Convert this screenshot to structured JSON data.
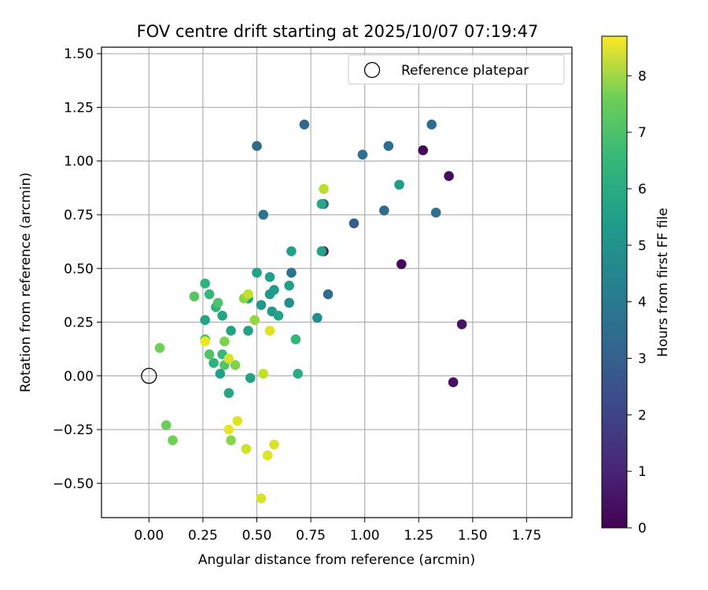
{
  "chart_data": {
    "type": "scatter",
    "title": "FOV centre drift starting at 2025/10/07 07:19:47",
    "xlabel": "Angular distance from reference (arcmin)",
    "ylabel": "Rotation from reference (arcmin)",
    "xlim": [
      -0.22,
      1.96
    ],
    "ylim": [
      -0.66,
      1.53
    ],
    "xticks": [
      0.0,
      0.25,
      0.5,
      0.75,
      1.0,
      1.25,
      1.5,
      1.75
    ],
    "xtick_labels": [
      "0.00",
      "0.25",
      "0.50",
      "0.75",
      "1.00",
      "1.25",
      "1.50",
      "1.75"
    ],
    "yticks": [
      -0.5,
      -0.25,
      0.0,
      0.25,
      0.5,
      0.75,
      1.0,
      1.25,
      1.5
    ],
    "ytick_labels": [
      "−0.50",
      "−0.25",
      "0.00",
      "0.25",
      "0.50",
      "0.75",
      "1.00",
      "1.25",
      "1.50"
    ],
    "grid": true,
    "legend": {
      "position": "top-right",
      "label": "Reference platepar"
    },
    "reference_point": {
      "x": 0.0,
      "y": 0.0
    },
    "colorbar": {
      "label": "Hours from first FF file",
      "range": [
        0,
        8.7
      ],
      "ticks": [
        0,
        1,
        2,
        3,
        4,
        5,
        6,
        7,
        8
      ],
      "tick_labels": [
        "0",
        "1",
        "2",
        "3",
        "4",
        "5",
        "6",
        "7",
        "8"
      ],
      "colormap": "viridis"
    },
    "points": [
      {
        "x": 1.27,
        "y": 1.05,
        "h": 0.2
      },
      {
        "x": 1.39,
        "y": 0.93,
        "h": 0.3
      },
      {
        "x": 1.17,
        "y": 0.52,
        "h": 0.2
      },
      {
        "x": 1.45,
        "y": 0.24,
        "h": 0.4
      },
      {
        "x": 1.41,
        "y": -0.03,
        "h": 0.4
      },
      {
        "x": 0.81,
        "y": 0.58,
        "h": 0.6
      },
      {
        "x": 0.81,
        "y": 0.8,
        "h": 2.5
      },
      {
        "x": 0.72,
        "y": 1.17,
        "h": 2.9
      },
      {
        "x": 0.5,
        "y": 1.07,
        "h": 3.0
      },
      {
        "x": 0.99,
        "y": 1.03,
        "h": 3.2
      },
      {
        "x": 1.11,
        "y": 1.07,
        "h": 3.1
      },
      {
        "x": 1.31,
        "y": 1.17,
        "h": 3.1
      },
      {
        "x": 0.95,
        "y": 0.71,
        "h": 2.6
      },
      {
        "x": 1.09,
        "y": 0.77,
        "h": 3.0
      },
      {
        "x": 1.33,
        "y": 0.76,
        "h": 3.2
      },
      {
        "x": 0.53,
        "y": 0.75,
        "h": 3.3
      },
      {
        "x": 0.66,
        "y": 0.48,
        "h": 3.3
      },
      {
        "x": 0.83,
        "y": 0.38,
        "h": 3.1
      },
      {
        "x": 1.16,
        "y": 0.89,
        "h": 4.8
      },
      {
        "x": 0.8,
        "y": 0.58,
        "h": 5.1
      },
      {
        "x": 0.8,
        "y": 0.8,
        "h": 5.2
      },
      {
        "x": 0.66,
        "y": 0.58,
        "h": 4.9
      },
      {
        "x": 0.65,
        "y": 0.34,
        "h": 4.3
      },
      {
        "x": 0.65,
        "y": 0.42,
        "h": 4.9
      },
      {
        "x": 0.56,
        "y": 0.46,
        "h": 4.9
      },
      {
        "x": 0.5,
        "y": 0.48,
        "h": 5.0
      },
      {
        "x": 0.56,
        "y": 0.38,
        "h": 4.7
      },
      {
        "x": 0.58,
        "y": 0.4,
        "h": 4.7
      },
      {
        "x": 0.52,
        "y": 0.33,
        "h": 4.6
      },
      {
        "x": 0.57,
        "y": 0.3,
        "h": 4.7
      },
      {
        "x": 0.6,
        "y": 0.28,
        "h": 5.0
      },
      {
        "x": 0.46,
        "y": 0.36,
        "h": 4.9
      },
      {
        "x": 0.78,
        "y": 0.27,
        "h": 4.3
      },
      {
        "x": 0.68,
        "y": 0.17,
        "h": 5.7
      },
      {
        "x": 0.69,
        "y": 0.01,
        "h": 5.4
      },
      {
        "x": 0.46,
        "y": 0.21,
        "h": 5.0
      },
      {
        "x": 0.47,
        "y": -0.01,
        "h": 5.0
      },
      {
        "x": 0.37,
        "y": -0.08,
        "h": 5.1
      },
      {
        "x": 0.33,
        "y": 0.01,
        "h": 4.9
      },
      {
        "x": 0.38,
        "y": 0.21,
        "h": 5.0
      },
      {
        "x": 0.34,
        "y": 0.28,
        "h": 5.1
      },
      {
        "x": 0.31,
        "y": 0.32,
        "h": 5.6
      },
      {
        "x": 0.32,
        "y": 0.34,
        "h": 6.2
      },
      {
        "x": 0.28,
        "y": 0.38,
        "h": 5.8
      },
      {
        "x": 0.26,
        "y": 0.43,
        "h": 5.6
      },
      {
        "x": 0.26,
        "y": 0.26,
        "h": 5.1
      },
      {
        "x": 0.21,
        "y": 0.37,
        "h": 6.4
      },
      {
        "x": 0.26,
        "y": 0.17,
        "h": 6.2
      },
      {
        "x": 0.28,
        "y": 0.1,
        "h": 6.3
      },
      {
        "x": 0.3,
        "y": 0.06,
        "h": 5.6
      },
      {
        "x": 0.34,
        "y": 0.1,
        "h": 5.8
      },
      {
        "x": 0.35,
        "y": 0.05,
        "h": 6.3
      },
      {
        "x": 0.4,
        "y": 0.05,
        "h": 7.0
      },
      {
        "x": 0.35,
        "y": 0.16,
        "h": 7.0
      },
      {
        "x": 0.38,
        "y": -0.3,
        "h": 7.1
      },
      {
        "x": 0.05,
        "y": 0.13,
        "h": 6.8
      },
      {
        "x": 0.08,
        "y": -0.23,
        "h": 6.7
      },
      {
        "x": 0.11,
        "y": -0.3,
        "h": 6.8
      },
      {
        "x": 0.44,
        "y": 0.36,
        "h": 7.2
      },
      {
        "x": 0.46,
        "y": 0.38,
        "h": 7.9
      },
      {
        "x": 0.49,
        "y": 0.26,
        "h": 7.3
      },
      {
        "x": 0.81,
        "y": 0.87,
        "h": 7.8
      },
      {
        "x": 0.56,
        "y": 0.21,
        "h": 8.3
      },
      {
        "x": 0.53,
        "y": 0.01,
        "h": 7.9
      },
      {
        "x": 0.26,
        "y": 0.16,
        "h": 8.5
      },
      {
        "x": 0.37,
        "y": 0.08,
        "h": 8.2
      },
      {
        "x": 0.37,
        "y": -0.25,
        "h": 8.4
      },
      {
        "x": 0.41,
        "y": -0.21,
        "h": 8.3
      },
      {
        "x": 0.45,
        "y": -0.34,
        "h": 8.1
      },
      {
        "x": 0.55,
        "y": -0.37,
        "h": 8.3
      },
      {
        "x": 0.58,
        "y": -0.32,
        "h": 8.2
      },
      {
        "x": 0.52,
        "y": -0.57,
        "h": 8.2
      }
    ]
  }
}
